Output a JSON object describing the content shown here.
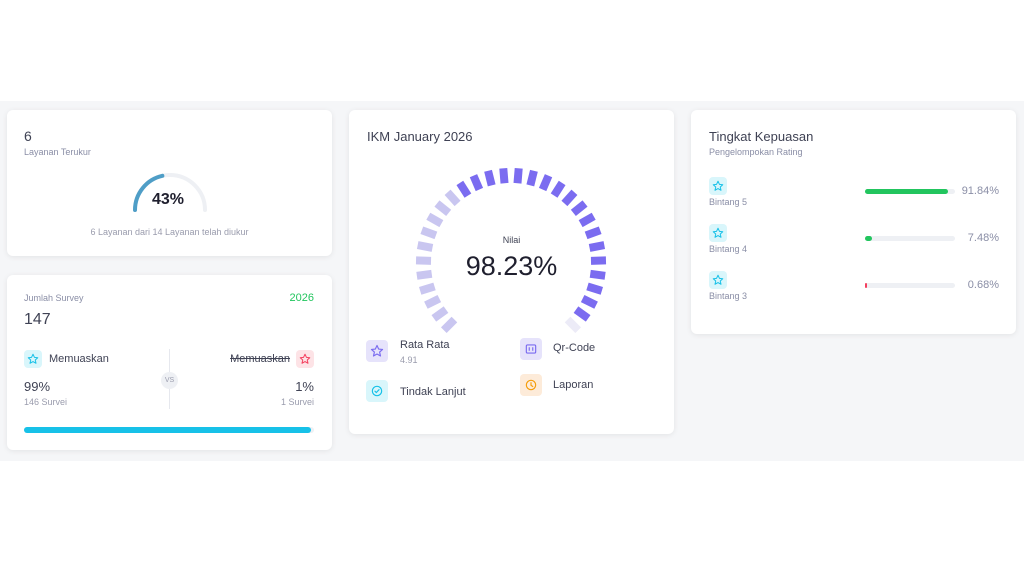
{
  "layanan": {
    "count": "6",
    "label": "Layanan Terukur",
    "percent": "43%",
    "percent_value": 0.43,
    "caption": "6 Layanan dari 14 Layanan telah diukur"
  },
  "survey": {
    "label": "Jumlah Survey",
    "year": "2026",
    "total": "147",
    "left_label": "Memuaskan",
    "left_pct": "99%",
    "left_count": "146 Survei",
    "right_label": "Memuaskan",
    "right_pct": "1%",
    "right_count": "1 Survei",
    "vs": "VS",
    "bar_value": 0.99
  },
  "ikm": {
    "title": "IKM January 2026",
    "nilai_label": "Nilai",
    "nilai": "98.23%",
    "nilai_value": 0.9823,
    "rata_label": "Rata Rata",
    "rata_value": "4.91",
    "qr_label": "Qr-Code",
    "tindak_label": "Tindak Lanjut",
    "laporan_label": "Laporan"
  },
  "kepuasan": {
    "title": "Tingkat Kepuasan",
    "subtitle": "Pengelompokan Rating",
    "rows": [
      {
        "label": "Bintang 5",
        "pct": "91.84%",
        "value": 0.9184,
        "color": "#22c55e"
      },
      {
        "label": "Bintang 4",
        "pct": "7.48%",
        "value": 0.0748,
        "color": "#22c55e"
      },
      {
        "label": "Bintang 3",
        "pct": "0.68%",
        "value": 0.0068,
        "color": "#f43f5e"
      }
    ]
  },
  "colors": {
    "accent_cyan": "#17c1e8",
    "accent_green": "#22c55e",
    "gauge_blue": "#4f9ec7",
    "gauge_purple": "#7b6cf0",
    "gauge_light": "#c9c6f0"
  },
  "icons": {
    "star": "star-icon",
    "qr": "qr-code-icon",
    "check": "check-circle-icon",
    "clock": "clock-icon"
  }
}
